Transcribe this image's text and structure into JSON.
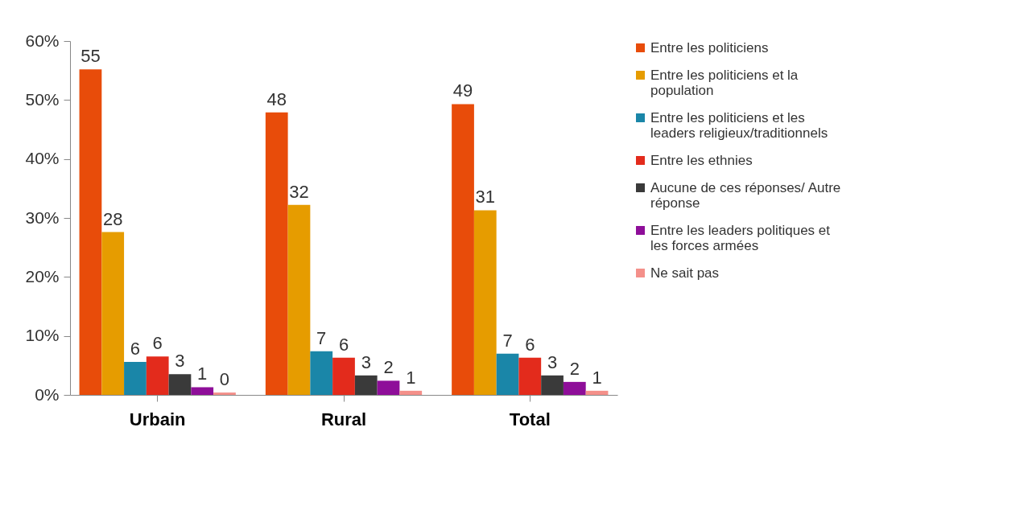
{
  "chart_data": {
    "type": "bar",
    "categories": [
      "Urbain",
      "Rural",
      "Total"
    ],
    "series": [
      {
        "name": "Entre  les politiciens",
        "color": "#e84c0a",
        "values": [
          55.2,
          47.9,
          49.3
        ],
        "value_labels": [
          "55",
          "48",
          "49"
        ]
      },
      {
        "name": "Entre  les  politiciens  et  la population",
        "color": "#e69c00",
        "values": [
          27.6,
          32.2,
          31.3
        ],
        "value_labels": [
          "28",
          "32",
          "31"
        ]
      },
      {
        "name": "Entre les politiciens et  les leaders religieux/traditionnels",
        "color": "#1a86a8",
        "values": [
          5.6,
          7.4,
          7.0
        ],
        "value_labels": [
          "6",
          "7",
          "7"
        ]
      },
      {
        "name": "Entre  les ethnies",
        "color": "#e32b1c",
        "values": [
          6.5,
          6.3,
          6.3
        ],
        "value_labels": [
          "6",
          "6",
          "6"
        ]
      },
      {
        "name": "Aucune de ces réponses/ Autre réponse",
        "color": "#3a3a3a",
        "values": [
          3.5,
          3.3,
          3.3
        ],
        "value_labels": [
          "3",
          "3",
          "3"
        ]
      },
      {
        "name": "Entre  les  leaders  politiques et les forces  armées",
        "color": "#8e0e99",
        "values": [
          1.3,
          2.4,
          2.2
        ],
        "value_labels": [
          "1",
          "2",
          "2"
        ]
      },
      {
        "name": "Ne sait  pas",
        "color": "#f4908a",
        "values": [
          0.4,
          0.7,
          0.7
        ],
        "value_labels": [
          "0",
          "1",
          "1"
        ]
      }
    ],
    "ylim": [
      0,
      60
    ],
    "yticks": [
      {
        "value": 0,
        "label": "0%"
      },
      {
        "value": 10,
        "label": "10%"
      },
      {
        "value": 20,
        "label": "20%"
      },
      {
        "value": 30,
        "label": "30%"
      },
      {
        "value": 40,
        "label": "40%"
      },
      {
        "value": 50,
        "label": "50%"
      },
      {
        "value": 60,
        "label": "60%"
      }
    ],
    "grid": false,
    "legend": "right"
  }
}
